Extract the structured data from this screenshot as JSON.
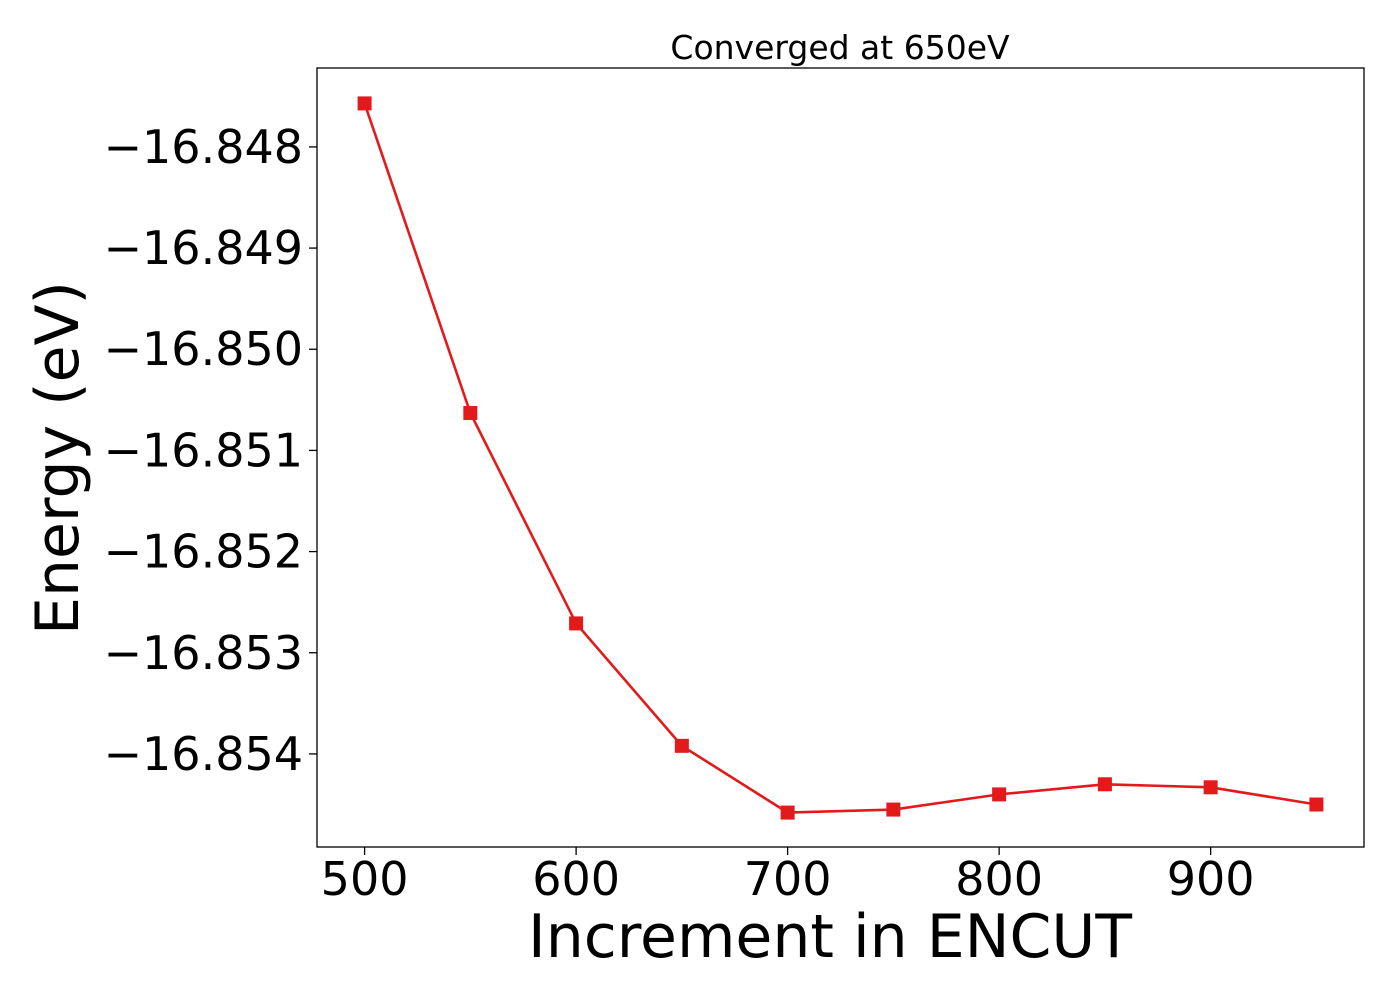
{
  "chart_data": {
    "type": "line",
    "title": "Converged at 650eV",
    "xlabel": "Increment in ENCUT",
    "ylabel": "Energy (eV)",
    "x": [
      500,
      550,
      600,
      650,
      700,
      750,
      800,
      850,
      900,
      950
    ],
    "series": [
      {
        "values": [
          -16.84757,
          -16.85063,
          -16.85271,
          -16.85392,
          -16.85458,
          -16.85455,
          -16.8544,
          -16.8543,
          -16.85433,
          -16.8545
        ],
        "color": "#e31a1c",
        "marker": "square"
      }
    ],
    "xlim": [
      477.5,
      972.5
    ],
    "ylim": [
      -16.85492,
      -16.84722
    ],
    "xticks": [
      500,
      600,
      700,
      800,
      900
    ],
    "xtick_labels": [
      "500",
      "600",
      "700",
      "800",
      "900"
    ],
    "yticks": [
      -16.848,
      -16.849,
      -16.85,
      -16.851,
      -16.852,
      -16.853,
      -16.854
    ],
    "ytick_labels": [
      "−16.848",
      "−16.849",
      "−16.850",
      "−16.851",
      "−16.852",
      "−16.853",
      "−16.854"
    ],
    "grid": false,
    "legend": "none"
  }
}
